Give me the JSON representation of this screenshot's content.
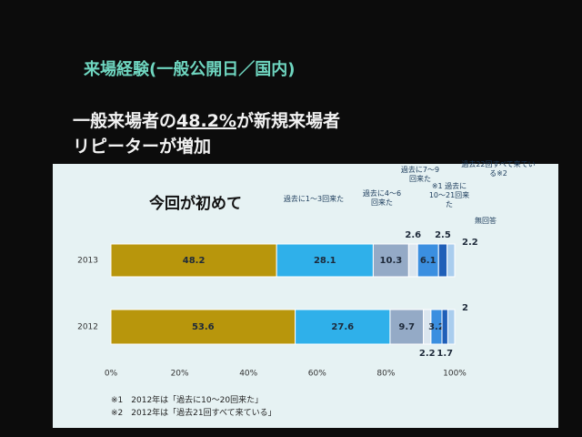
{
  "chart_data": {
    "type": "stacked-barh",
    "title": "来場経験(一般公開日／国内)",
    "subtitle_lines": [
      [
        "一般来場者の",
        "48.2%",
        "が新規来場者"
      ],
      [
        "リピーターが増加"
      ]
    ],
    "categories": [
      "2013",
      "2012"
    ],
    "series": [
      {
        "name": "今回が初めて",
        "color": "#b8960c",
        "values": [
          48.2,
          53.6
        ]
      },
      {
        "name": "過去に1～3回来た",
        "color": "#2fb0ea",
        "values": [
          28.1,
          27.6
        ]
      },
      {
        "name": "過去に4～6回来た",
        "color": "#94aac6",
        "values": [
          10.3,
          9.7
        ]
      },
      {
        "name": "過去に7～9回来た",
        "color": "#dbe6ef",
        "values": [
          2.6,
          2.2
        ]
      },
      {
        "name": "※1 過去に10～21回来た",
        "color": "#3b8fe0",
        "values": [
          6.1,
          3.2
        ]
      },
      {
        "name": "過去22回すべて来ている※2",
        "color": "#1f5fb8",
        "values": [
          2.5,
          1.7
        ]
      },
      {
        "name": "無回答",
        "color": "#a9cdee",
        "values": [
          2.2,
          2.0
        ]
      }
    ],
    "xlim": [
      0,
      100
    ],
    "xticks": [
      {
        "value": 0,
        "label": "0%"
      },
      {
        "value": 20,
        "label": "20%"
      },
      {
        "value": 40,
        "label": "40%"
      },
      {
        "value": 60,
        "label": "60%"
      },
      {
        "value": 80,
        "label": "80%"
      },
      {
        "value": 100,
        "label": "100%"
      }
    ],
    "footnotes": [
      "※1　2012年は「過去に10～20回来た」",
      "※2　2012年は「過去21回すべて来ている」"
    ]
  }
}
